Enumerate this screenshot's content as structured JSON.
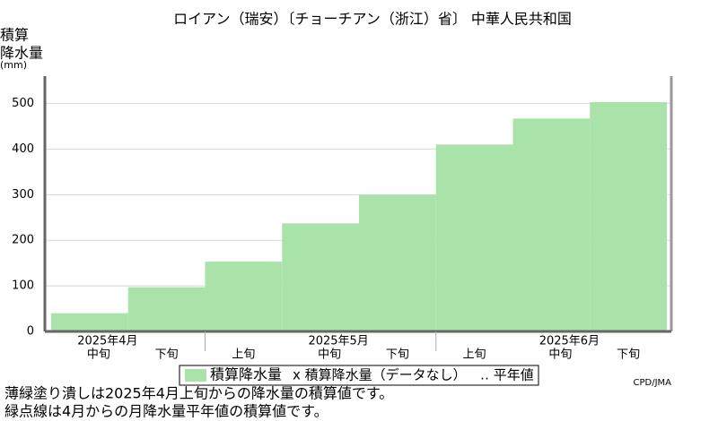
{
  "chart_data": {
    "type": "step-area",
    "title": "ロイアン（瑞安）〔チョーチアン（浙江）省〕 中華人民共和国",
    "y_label": [
      "積算",
      "降水量",
      "(mm)"
    ],
    "categories": [
      "中旬",
      "下旬",
      "上旬",
      "中旬",
      "下旬",
      "上旬",
      "中旬",
      "下旬"
    ],
    "months": [
      "2025年4月",
      "2025年5月",
      "2025年6月"
    ],
    "series": [
      {
        "name": "積算降水量",
        "color": "#aae3aa",
        "values": [
          40,
          97,
          153,
          237,
          300,
          410,
          467,
          503
        ]
      }
    ],
    "legend_extra": [
      "x 積算降水量（データなし）",
      "‥ 平年値"
    ],
    "ylim": [
      0,
      560
    ],
    "yticks": [
      0,
      100,
      200,
      300,
      400,
      500
    ],
    "grid": true,
    "notes": [
      "薄緑塗り潰しは2025年4月上旬からの降水量の積算値です。",
      "緑点線は4月からの月降水量平年値の積算値です。"
    ],
    "credit": "CPD/JMA"
  }
}
